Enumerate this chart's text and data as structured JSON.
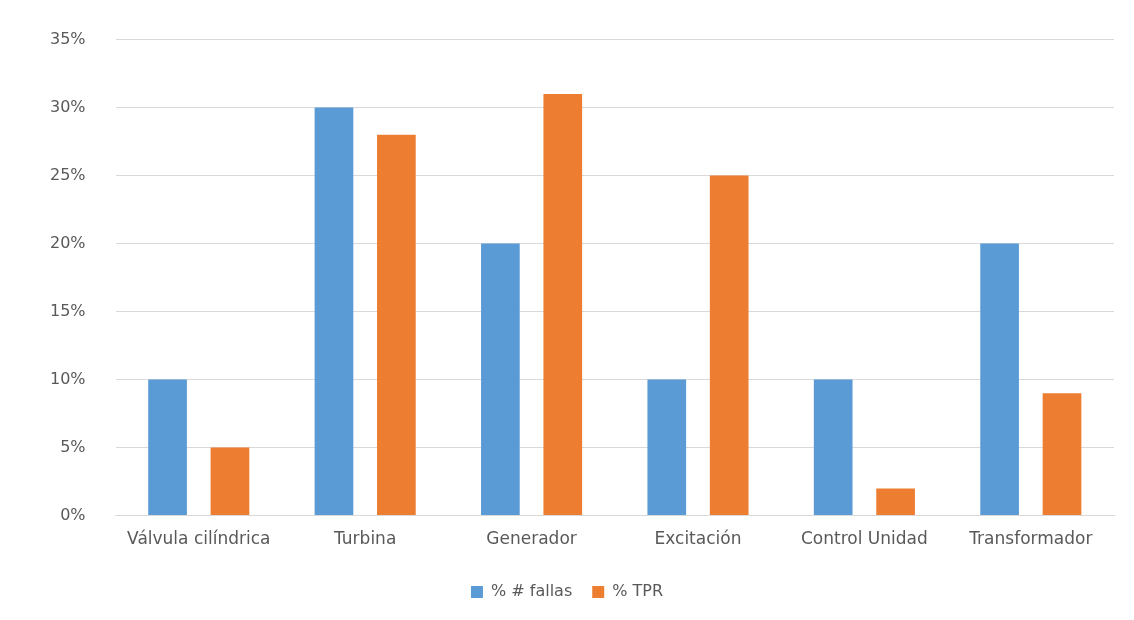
{
  "chart_data": {
    "type": "bar",
    "categories": [
      "Válvula cilíndrica",
      "Turbina",
      "Generador",
      "Excitación",
      "Control Unidad",
      "Transformador"
    ],
    "series": [
      {
        "name": "% # fallas",
        "color": "#5b9bd5",
        "values": [
          10,
          30,
          20,
          10,
          10,
          20
        ]
      },
      {
        "name": "% TPR",
        "color": "#ed7d31",
        "values": [
          5,
          28,
          31,
          25,
          2,
          9
        ]
      }
    ],
    "ylim": [
      0,
      35
    ],
    "yticks": [
      {
        "value": 0,
        "label": "0%"
      },
      {
        "value": 5,
        "label": "5%"
      },
      {
        "value": 10,
        "label": "10%"
      },
      {
        "value": 15,
        "label": "15%"
      },
      {
        "value": 20,
        "label": "20%"
      },
      {
        "value": 25,
        "label": "25%"
      },
      {
        "value": 30,
        "label": "30%"
      },
      {
        "value": 35,
        "label": "35%"
      }
    ],
    "grid": "y",
    "legend": "bottom"
  }
}
